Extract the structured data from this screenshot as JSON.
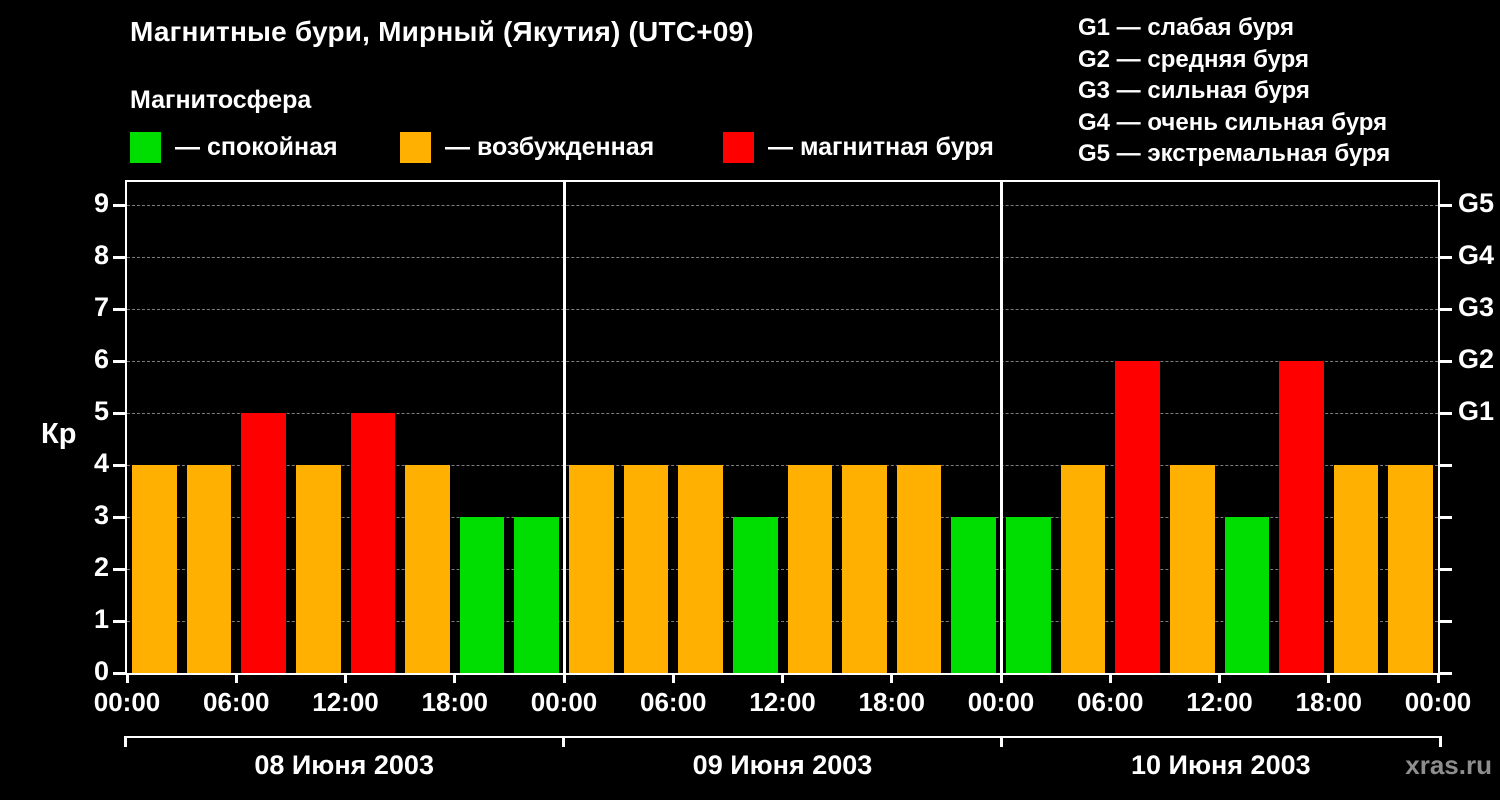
{
  "title": "Магнитные бури, Мирный (Якутия) (UTC+09)",
  "watermark": "xras.ru",
  "legend": {
    "title": "Магнитосфера",
    "items": [
      {
        "name": "quiet",
        "label": "— спокойная",
        "color": "#00dd00"
      },
      {
        "name": "unsettled",
        "label": "— возбужденная",
        "color": "#ffb000"
      },
      {
        "name": "storm",
        "label": "— магнитная буря",
        "color": "#ff0000"
      }
    ]
  },
  "g_legend": [
    "G1 — слабая буря",
    "G2 — средняя буря",
    "G3 — сильная буря",
    "G4 — очень сильная буря",
    "G5 — экстремальная буря"
  ],
  "chart_data": {
    "type": "bar",
    "title": "Магнитные бури, Мирный (Якутия) (UTC+09)",
    "ylabel": "Кр",
    "ylim": [
      0,
      9.45
    ],
    "y_ticks": [
      0,
      1,
      2,
      3,
      4,
      5,
      6,
      7,
      8,
      9
    ],
    "grid": true,
    "legend_position": "top",
    "g_axis": [
      {
        "value": 5,
        "label": "G1"
      },
      {
        "value": 6,
        "label": "G2"
      },
      {
        "value": 7,
        "label": "G3"
      },
      {
        "value": 8,
        "label": "G4"
      },
      {
        "value": 9,
        "label": "G5"
      }
    ],
    "x_tick_labels": [
      "00:00",
      "06:00",
      "12:00",
      "18:00",
      "00:00",
      "06:00",
      "12:00",
      "18:00",
      "00:00",
      "06:00",
      "12:00",
      "18:00",
      "00:00"
    ],
    "hours_per_bar": 3,
    "total_hours": 72,
    "colors": {
      "quiet": "#00dd00",
      "unsettled": "#ffb000",
      "storm": "#ff0000"
    },
    "thresholds": {
      "quiet_max": 3,
      "storm_min": 5
    },
    "days": [
      {
        "date": "08 Июня 2003",
        "kp": [
          4,
          4,
          5,
          4,
          5,
          4,
          3,
          3
        ]
      },
      {
        "date": "09 Июня 2003",
        "kp": [
          4,
          4,
          4,
          3,
          4,
          4,
          4,
          3
        ]
      },
      {
        "date": "10 Июня 2003",
        "kp": [
          3,
          4,
          6,
          4,
          3,
          6,
          4,
          4
        ]
      }
    ]
  }
}
